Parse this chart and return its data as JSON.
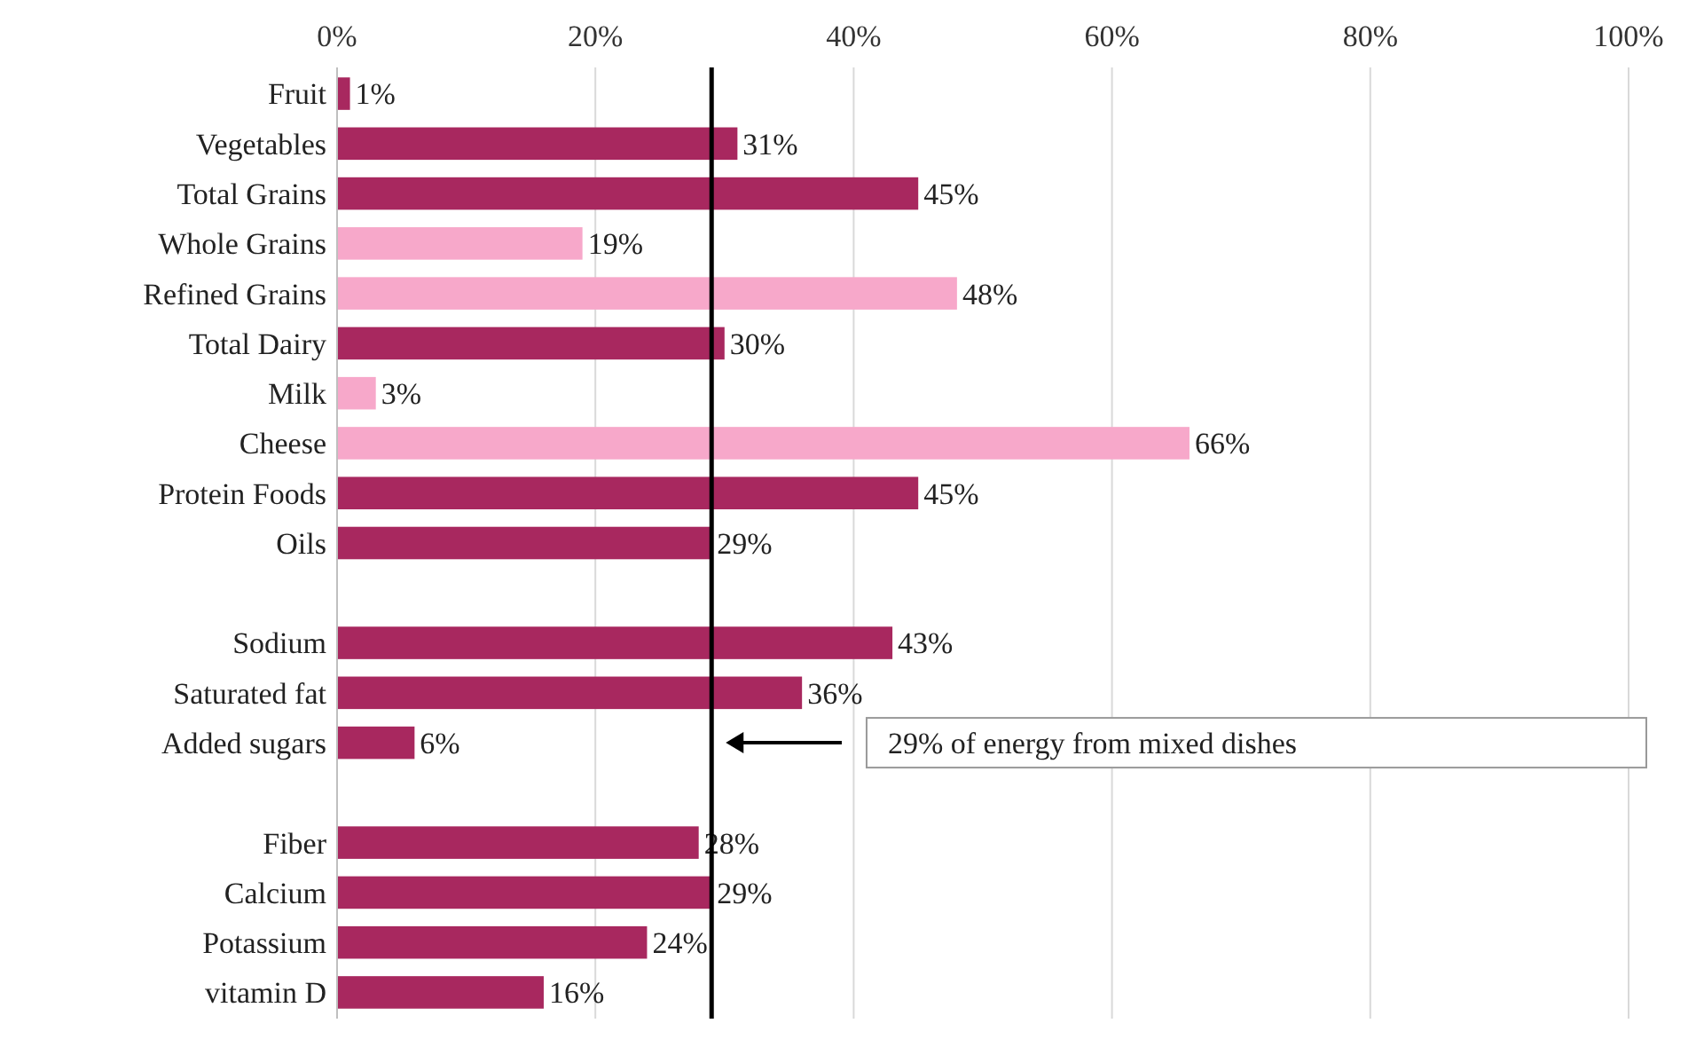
{
  "chart_data": {
    "type": "bar",
    "orientation": "horizontal",
    "categories": [
      "Fruit",
      "Vegetables",
      "Total Grains",
      "Whole Grains",
      "Refined Grains",
      "Total Dairy",
      "Milk",
      "Cheese",
      "Protein Foods",
      "Oils",
      null,
      "Sodium",
      "Saturated fat",
      "Added sugars",
      null,
      "Fiber",
      "Calcium",
      "Potassium",
      "vitamin D"
    ],
    "values": [
      1,
      31,
      45,
      19,
      48,
      30,
      3,
      66,
      45,
      29,
      null,
      43,
      36,
      6,
      null,
      28,
      29,
      24,
      16
    ],
    "value_labels": [
      "1%",
      "31%",
      "45%",
      "19%",
      "48%",
      "30%",
      "3%",
      "66%",
      "45%",
      "29%",
      null,
      "43%",
      "36%",
      "6%",
      null,
      "28%",
      "29%",
      "24%",
      "16%"
    ],
    "colors": [
      "#a8285f",
      "#a8285f",
      "#a8285f",
      "#f7a8ca",
      "#f7a8ca",
      "#a8285f",
      "#f7a8ca",
      "#f7a8ca",
      "#a8285f",
      "#a8285f",
      null,
      "#a8285f",
      "#a8285f",
      "#a8285f",
      null,
      "#a8285f",
      "#a8285f",
      "#a8285f",
      "#a8285f"
    ],
    "xlim": [
      0,
      100
    ],
    "xticks": [
      {
        "value": 0,
        "label": "0%"
      },
      {
        "value": 20,
        "label": "20%"
      },
      {
        "value": 40,
        "label": "40%"
      },
      {
        "value": 60,
        "label": "60%"
      },
      {
        "value": 80,
        "label": "80%"
      },
      {
        "value": 100,
        "label": "100%"
      }
    ],
    "grid": "x",
    "ref_lines": [
      {
        "axis": "x",
        "value": 29,
        "label": "29% of energy from mixed dishes",
        "color": "#000000"
      }
    ]
  }
}
